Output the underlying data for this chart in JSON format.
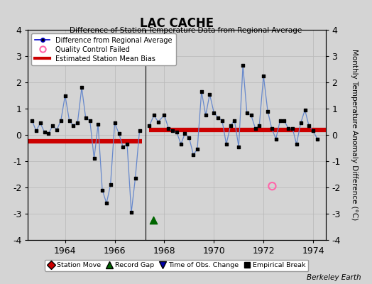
{
  "title": "LAC CACHE",
  "subtitle": "Difference of Station Temperature Data from Regional Average",
  "ylabel_right": "Monthly Temperature Anomaly Difference (°C)",
  "credit": "Berkeley Earth",
  "xlim": [
    1962.5,
    1974.5
  ],
  "ylim": [
    -4,
    4
  ],
  "xticks": [
    1964,
    1966,
    1968,
    1970,
    1972,
    1974
  ],
  "yticks": [
    -4,
    -3,
    -2,
    -1,
    0,
    1,
    2,
    3,
    4
  ],
  "background_color": "#d4d4d4",
  "plot_bg_color": "#d4d4d4",
  "segment1_bias": -0.25,
  "segment2_bias": 0.18,
  "segment1_x_start": 1962.5,
  "segment1_x_end": 1967.1,
  "segment2_x_start": 1967.4,
  "segment2_x_end": 1974.5,
  "gap_x": 1967.25,
  "record_gap_x": 1967.55,
  "record_gap_y": -3.25,
  "qc_fail_x": 1972.35,
  "qc_fail_y": -1.95,
  "segment1": {
    "x": [
      1962.67,
      1962.83,
      1963.0,
      1963.17,
      1963.33,
      1963.5,
      1963.67,
      1963.83,
      1964.0,
      1964.17,
      1964.33,
      1964.5,
      1964.67,
      1964.83,
      1965.0,
      1965.17,
      1965.33,
      1965.5,
      1965.67,
      1965.83,
      1966.0,
      1966.17,
      1966.33,
      1966.5,
      1966.67,
      1966.83,
      1967.0
    ],
    "y": [
      0.55,
      0.15,
      0.45,
      0.1,
      0.05,
      0.35,
      0.2,
      0.55,
      1.5,
      0.55,
      0.35,
      0.45,
      1.8,
      0.65,
      0.55,
      -0.9,
      0.4,
      -2.1,
      -2.6,
      -1.9,
      0.45,
      0.05,
      -0.45,
      -0.35,
      -2.95,
      -1.65,
      0.15
    ]
  },
  "segment2": {
    "x": [
      1967.4,
      1967.58,
      1967.75,
      1968.0,
      1968.17,
      1968.33,
      1968.5,
      1968.67,
      1968.83,
      1969.0,
      1969.17,
      1969.33,
      1969.5,
      1969.67,
      1969.83,
      1970.0,
      1970.17,
      1970.33,
      1970.5,
      1970.67,
      1970.83,
      1971.0,
      1971.17,
      1971.33,
      1971.5,
      1971.67,
      1971.83,
      1972.0,
      1972.17,
      1972.33,
      1972.5,
      1972.67,
      1972.83,
      1973.0,
      1973.17,
      1973.33,
      1973.5,
      1973.67,
      1973.83,
      1974.0,
      1974.17
    ],
    "y": [
      0.35,
      0.75,
      0.5,
      0.75,
      0.25,
      0.15,
      0.1,
      -0.35,
      0.05,
      -0.1,
      -0.75,
      -0.55,
      1.65,
      0.75,
      1.55,
      0.85,
      0.65,
      0.55,
      -0.35,
      0.35,
      0.55,
      -0.45,
      2.65,
      0.85,
      0.75,
      0.25,
      0.35,
      2.25,
      0.9,
      0.25,
      -0.15,
      0.55,
      0.55,
      0.25,
      0.25,
      -0.35,
      0.45,
      0.95,
      0.35,
      0.15,
      -0.15
    ]
  },
  "line_color": "#6688cc",
  "line_color_dark": "#0000cc",
  "marker_color": "#000000",
  "bias_color": "#cc0000",
  "qc_color": "#ff66aa",
  "gap_marker_color": "#006600",
  "obs_change_color": "#0000aa",
  "grid_color": "#bbbbbb"
}
